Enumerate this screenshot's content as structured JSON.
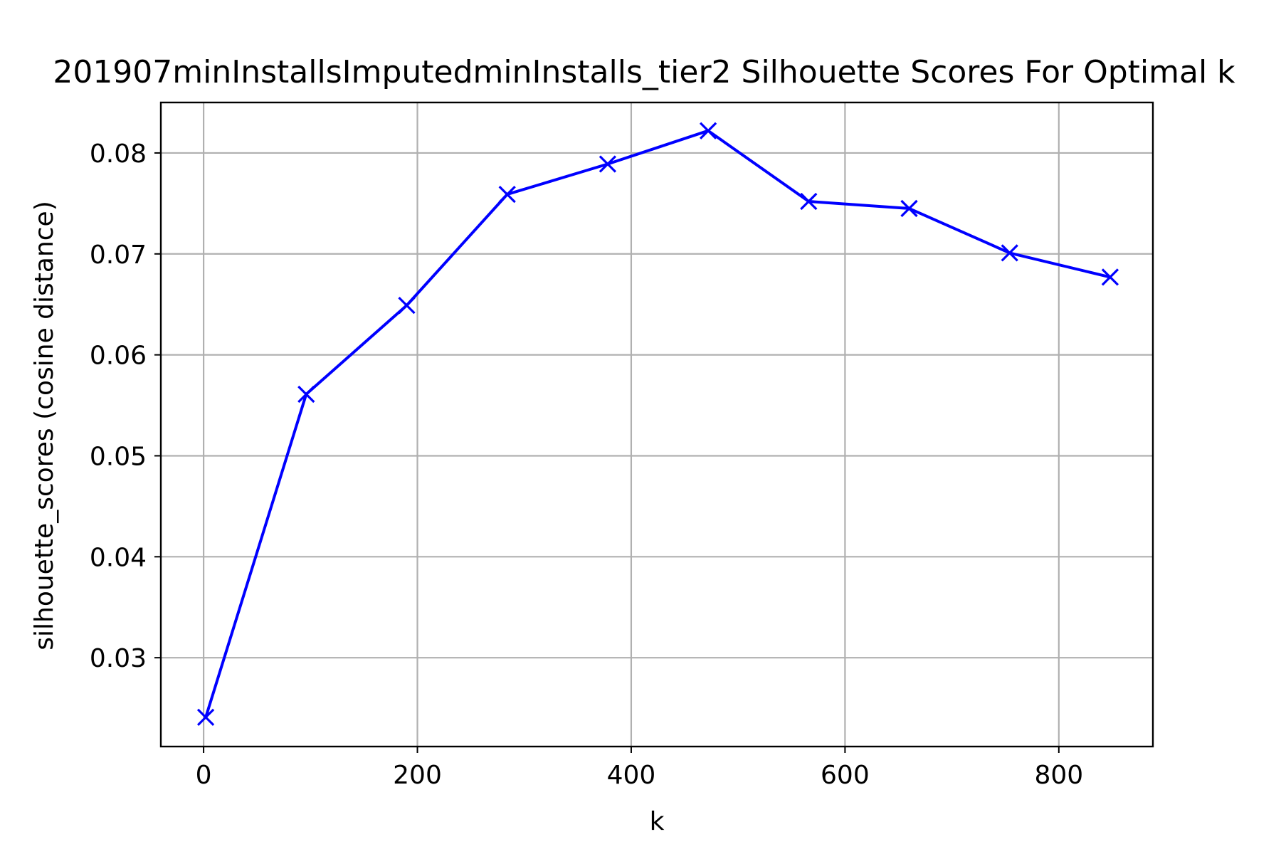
{
  "chart_data": {
    "type": "line",
    "title": "201907minInstallsImputedminInstalls_tier2 Silhouette Scores For Optimal k",
    "xlabel": "k",
    "ylabel": "silhouette_scores (cosine distance)",
    "xlim": [
      -40,
      888
    ],
    "ylim": [
      0.0212,
      0.085
    ],
    "xticks": [
      0,
      200,
      400,
      600,
      800
    ],
    "xtick_labels": [
      "0",
      "200",
      "400",
      "600",
      "800"
    ],
    "yticks": [
      0.03,
      0.04,
      0.05,
      0.06,
      0.07,
      0.08
    ],
    "ytick_labels": [
      "0.03",
      "0.04",
      "0.05",
      "0.06",
      "0.07",
      "0.08"
    ],
    "grid": true,
    "series": [
      {
        "color": "#0000ff",
        "marker": "x",
        "x": [
          2,
          96,
          190,
          284,
          378,
          472,
          566,
          660,
          754,
          848
        ],
        "y": [
          0.0241,
          0.0561,
          0.0649,
          0.0759,
          0.0789,
          0.0822,
          0.0752,
          0.0745,
          0.0701,
          0.0677
        ]
      }
    ]
  }
}
